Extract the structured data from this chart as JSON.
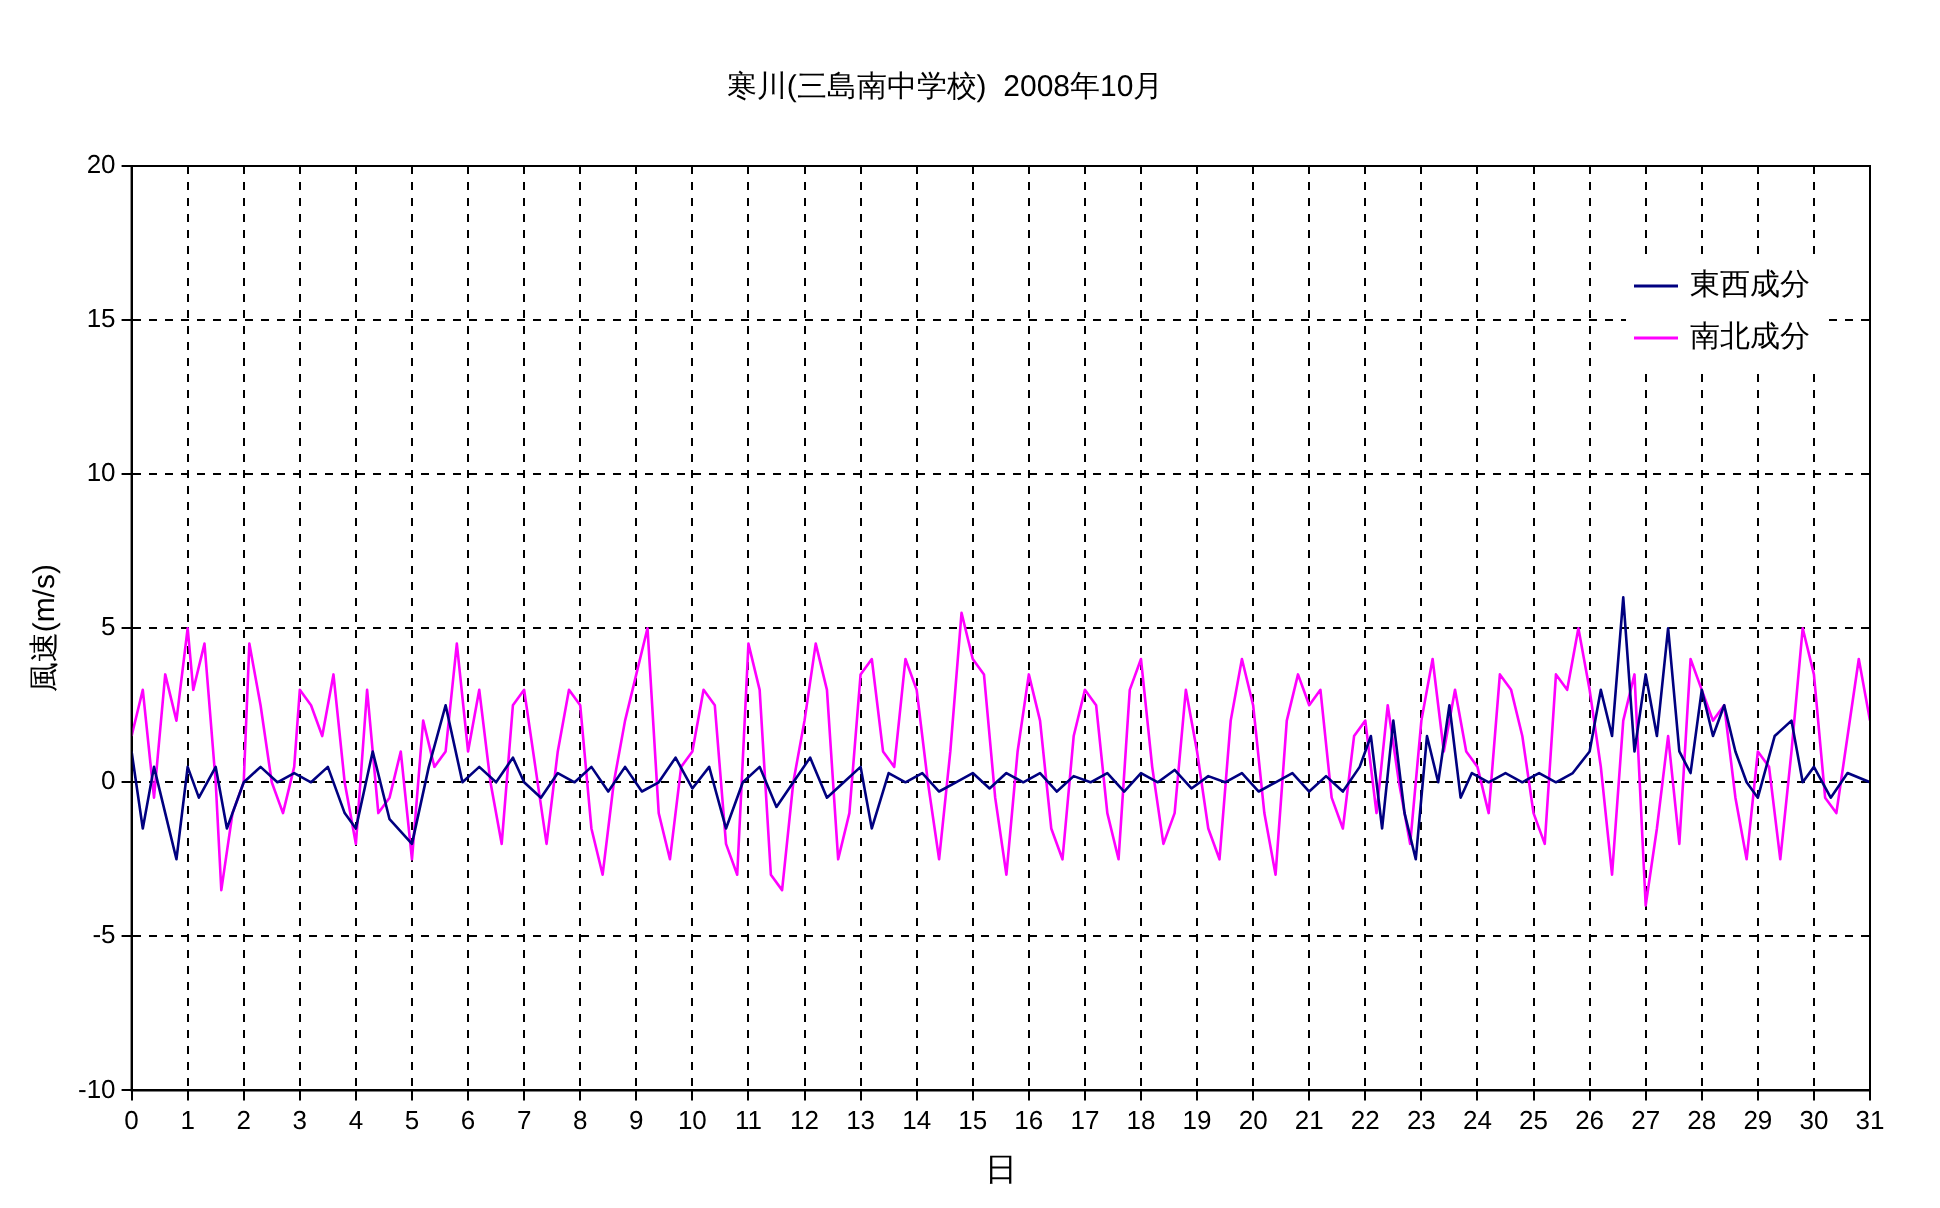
{
  "chart_data": {
    "type": "line",
    "title": "寒川(三島南中学校)  2008年10月",
    "xlabel": "日",
    "ylabel": "風速(m/s)",
    "xlim": [
      0,
      31
    ],
    "xticks": [
      0,
      1,
      2,
      3,
      4,
      5,
      6,
      7,
      8,
      9,
      10,
      11,
      12,
      13,
      14,
      15,
      16,
      17,
      18,
      19,
      20,
      21,
      22,
      23,
      24,
      25,
      26,
      27,
      28,
      29,
      30,
      31
    ],
    "ylim": [
      -10,
      20
    ],
    "yticks": [
      -10,
      -5,
      0,
      5,
      10,
      15,
      20
    ],
    "grid": true,
    "legend": "top right",
    "marker": "none",
    "line_style": "solid",
    "series": [
      {
        "name": "東西成分",
        "color": "#000080",
        "x": [
          0,
          0.2,
          0.4,
          0.6,
          0.8,
          1.0,
          1.2,
          1.5,
          1.7,
          2.0,
          2.3,
          2.6,
          2.9,
          3.2,
          3.5,
          3.8,
          4.0,
          4.3,
          4.6,
          5.0,
          5.3,
          5.6,
          5.9,
          6.2,
          6.5,
          6.8,
          7.0,
          7.3,
          7.6,
          7.9,
          8.2,
          8.5,
          8.8,
          9.1,
          9.4,
          9.7,
          10.0,
          10.3,
          10.6,
          10.9,
          11.2,
          11.5,
          11.8,
          12.1,
          12.4,
          12.7,
          13.0,
          13.2,
          13.5,
          13.8,
          14.1,
          14.4,
          14.7,
          15.0,
          15.3,
          15.6,
          15.9,
          16.2,
          16.5,
          16.8,
          17.1,
          17.4,
          17.7,
          18.0,
          18.3,
          18.6,
          18.9,
          19.2,
          19.5,
          19.8,
          20.1,
          20.4,
          20.7,
          21.0,
          21.3,
          21.6,
          21.9,
          22.1,
          22.3,
          22.5,
          22.7,
          22.9,
          23.1,
          23.3,
          23.5,
          23.7,
          23.9,
          24.2,
          24.5,
          24.8,
          25.1,
          25.4,
          25.7,
          26.0,
          26.2,
          26.4,
          26.6,
          26.8,
          27.0,
          27.2,
          27.4,
          27.6,
          27.8,
          28.0,
          28.2,
          28.4,
          28.6,
          28.8,
          29.0,
          29.3,
          29.6,
          29.8,
          30.0,
          30.3,
          30.6,
          31.0
        ],
        "values": [
          1,
          -1.5,
          0.5,
          -1,
          -2.5,
          0.5,
          -0.5,
          0.5,
          -1.5,
          0,
          0.5,
          0,
          0.3,
          0,
          0.5,
          -1,
          -1.5,
          1,
          -1.2,
          -2,
          0.5,
          2.5,
          0,
          0.5,
          0,
          0.8,
          0,
          -0.5,
          0.3,
          0,
          0.5,
          -0.3,
          0.5,
          -0.3,
          0,
          0.8,
          -0.2,
          0.5,
          -1.5,
          0,
          0.5,
          -0.8,
          0,
          0.8,
          -0.5,
          0,
          0.5,
          -1.5,
          0.3,
          0,
          0.3,
          -0.3,
          0,
          0.3,
          -0.2,
          0.3,
          0,
          0.3,
          -0.3,
          0.2,
          0,
          0.3,
          -0.3,
          0.3,
          0,
          0.4,
          -0.2,
          0.2,
          0,
          0.3,
          -0.3,
          0,
          0.3,
          -0.3,
          0.2,
          -0.3,
          0.5,
          1.5,
          -1.5,
          2,
          -1,
          -2.5,
          1.5,
          0,
          2.5,
          -0.5,
          0.3,
          0,
          0.3,
          0,
          0.3,
          0,
          0.3,
          1,
          3,
          1.5,
          6,
          1,
          3.5,
          1.5,
          5,
          1,
          0.3,
          3,
          1.5,
          2.5,
          1,
          0,
          -0.5,
          1.5,
          2,
          0,
          0.5,
          -0.5,
          0.3,
          0
        ]
      },
      {
        "name": "南北成分",
        "color": "#ff00ff",
        "x": [
          0,
          0.2,
          0.4,
          0.6,
          0.8,
          1.0,
          1.1,
          1.3,
          1.5,
          1.6,
          1.8,
          2.0,
          2.1,
          2.3,
          2.5,
          2.7,
          2.9,
          3.0,
          3.2,
          3.4,
          3.6,
          3.8,
          4.0,
          4.2,
          4.4,
          4.6,
          4.8,
          5.0,
          5.2,
          5.4,
          5.6,
          5.8,
          6.0,
          6.2,
          6.4,
          6.6,
          6.8,
          7.0,
          7.2,
          7.4,
          7.6,
          7.8,
          8.0,
          8.2,
          8.4,
          8.6,
          8.8,
          9.0,
          9.2,
          9.4,
          9.6,
          9.8,
          10.0,
          10.2,
          10.4,
          10.6,
          10.8,
          11.0,
          11.2,
          11.4,
          11.6,
          11.8,
          12.0,
          12.2,
          12.4,
          12.6,
          12.8,
          13.0,
          13.2,
          13.4,
          13.6,
          13.8,
          14.0,
          14.2,
          14.4,
          14.6,
          14.8,
          15.0,
          15.2,
          15.4,
          15.6,
          15.8,
          16.0,
          16.2,
          16.4,
          16.6,
          16.8,
          17.0,
          17.2,
          17.4,
          17.6,
          17.8,
          18.0,
          18.2,
          18.4,
          18.6,
          18.8,
          19.0,
          19.2,
          19.4,
          19.6,
          19.8,
          20.0,
          20.2,
          20.4,
          20.6,
          20.8,
          21.0,
          21.2,
          21.4,
          21.6,
          21.8,
          22.0,
          22.2,
          22.4,
          22.6,
          22.8,
          23.0,
          23.2,
          23.4,
          23.6,
          23.8,
          24.0,
          24.2,
          24.4,
          24.6,
          24.8,
          25.0,
          25.2,
          25.4,
          25.6,
          25.8,
          26.0,
          26.2,
          26.4,
          26.6,
          26.8,
          27.0,
          27.2,
          27.4,
          27.6,
          27.8,
          28.0,
          28.2,
          28.4,
          28.6,
          28.8,
          29.0,
          29.2,
          29.4,
          29.6,
          29.8,
          30.0,
          30.2,
          30.4,
          30.6,
          30.8,
          31.0
        ],
        "values": [
          1.5,
          3,
          -0.5,
          3.5,
          2,
          5,
          3,
          4.5,
          0,
          -3.5,
          -1,
          0,
          4.5,
          2.5,
          0,
          -1,
          0.5,
          3,
          2.5,
          1.5,
          3.5,
          0,
          -2,
          3,
          -1,
          -0.5,
          1,
          -2.5,
          2,
          0.5,
          1,
          4.5,
          1,
          3,
          0,
          -2,
          2.5,
          3,
          0.5,
          -2,
          1,
          3,
          2.5,
          -1.5,
          -3,
          0,
          2,
          3.5,
          5,
          -1,
          -2.5,
          0.5,
          1,
          3,
          2.5,
          -2,
          -3,
          4.5,
          3,
          -3,
          -3.5,
          0,
          2,
          4.5,
          3,
          -2.5,
          -1,
          3.5,
          4,
          1,
          0.5,
          4,
          3,
          0,
          -2.5,
          1,
          5.5,
          4,
          3.5,
          -0.5,
          -3,
          1,
          3.5,
          2,
          -1.5,
          -2.5,
          1.5,
          3,
          2.5,
          -1,
          -2.5,
          3,
          4,
          0.5,
          -2,
          -1,
          3,
          1,
          -1.5,
          -2.5,
          2,
          4,
          2.5,
          -1,
          -3,
          2,
          3.5,
          2.5,
          3,
          -0.5,
          -1.5,
          1.5,
          2,
          -1,
          2.5,
          0,
          -2,
          2,
          4,
          1,
          3,
          1,
          0.5,
          -1,
          3.5,
          3,
          1.5,
          -1,
          -2,
          3.5,
          3,
          5,
          3,
          0.5,
          -3,
          2,
          3.5,
          -4,
          -1.5,
          1.5,
          -2,
          4,
          3,
          2,
          2.5,
          -0.5,
          -2.5,
          1,
          0.5,
          -2.5,
          1,
          5,
          3.5,
          -0.5,
          -1,
          1.5,
          4,
          2
        ]
      }
    ]
  }
}
